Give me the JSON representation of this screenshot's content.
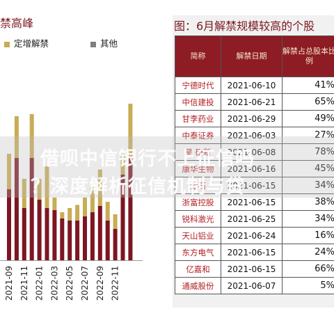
{
  "left_chart": {
    "title": "禁高峰",
    "legend": [
      {
        "label": "定增解禁",
        "color": "#c8ac56"
      },
      {
        "label": "其他",
        "color": "#7f7f7f"
      }
    ]
  },
  "chart_data": {
    "type": "bar",
    "stacked": true,
    "title": "禁高峰",
    "x_ticks": [
      "2021-09",
      "2021-11",
      "2022-01",
      "2022-03",
      "2022-05",
      "2022-07",
      "2022-09",
      "2022-11"
    ],
    "series": [
      {
        "color": "#7d1522",
        "values": [
          68,
          98,
          50,
          98,
          58,
          50,
          48,
          40,
          38,
          38,
          42,
          46,
          52,
          38,
          30,
          82,
          98
        ]
      },
      {
        "color": "#c8ac56",
        "values": [
          34,
          40,
          28,
          42,
          20,
          40,
          12,
          6,
          12,
          15,
          18,
          24,
          35,
          18,
          14,
          20,
          52
        ]
      }
    ]
  },
  "table": {
    "title": "图：6月解禁规模较高的个股",
    "headers": [
      "简称",
      "解禁日期",
      "解禁占总股本比例"
    ],
    "rows": [
      {
        "name": "宁德时代",
        "date": "2021-06-10",
        "pct": "41%"
      },
      {
        "name": "中信建投",
        "date": "2021-06-21",
        "pct": "65%"
      },
      {
        "name": "甘李药业",
        "date": "2021-06-29",
        "pct": "49%"
      },
      {
        "name": "中泰证券",
        "date": "2021-06-03",
        "pct": "27%"
      },
      {
        "name": "星 研新",
        "date": "2021-06-08",
        "pct": "78%"
      },
      {
        "name": "康华生物",
        "date": "2021-06-16",
        "pct": "45%"
      },
      {
        "name": "金石 ",
        "date": "2021-06-15",
        "pct": "34%"
      },
      {
        "name": "浙富控股",
        "date": "2021-06-15",
        "pct": "38%"
      },
      {
        "name": "锐科激光",
        "date": "2021-06-25",
        "pct": "34%"
      },
      {
        "name": "天山铝业",
        "date": "2021-06-24",
        "pct": "16%"
      },
      {
        "name": "东方电气",
        "date": "2021-06-15",
        "pct": "24%"
      },
      {
        "name": "亿嘉和",
        "date": "2021-06-15",
        "pct": "66%"
      },
      {
        "name": "通威股份",
        "date": "2021-06-07",
        "pct": "5%"
      }
    ]
  },
  "watermark": {
    "line1": "借呗中信银行不上征信吗",
    "line2": "？深度解析征信机制与贷"
  }
}
